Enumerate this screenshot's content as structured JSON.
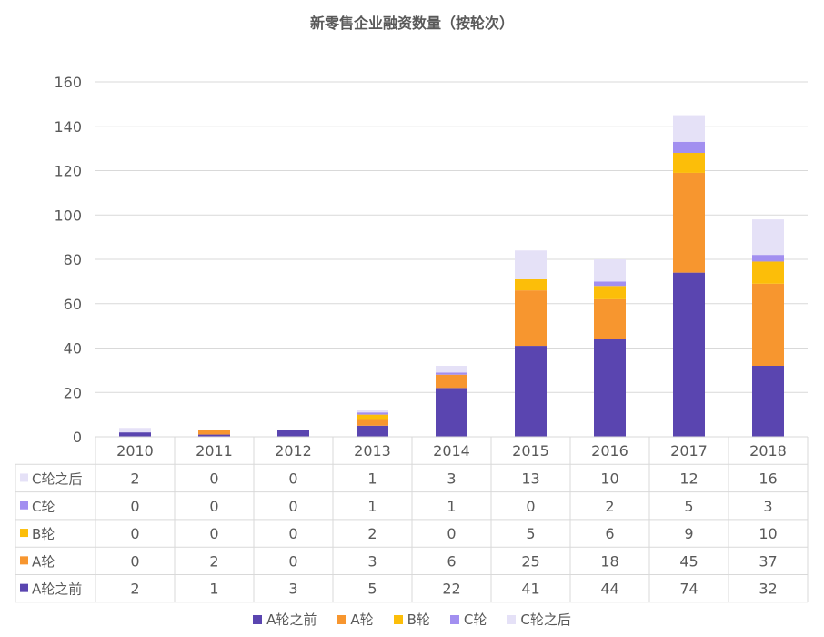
{
  "chart_data": {
    "type": "bar",
    "stacked": true,
    "title": "新零售企业融资数量（按轮次）",
    "categories": [
      "2010",
      "2011",
      "2012",
      "2013",
      "2014",
      "2015",
      "2016",
      "2017",
      "2018"
    ],
    "ylim": [
      0,
      160
    ],
    "yticks": [
      0,
      20,
      40,
      60,
      80,
      100,
      120,
      140,
      160
    ],
    "grid": true,
    "legend_position": "bottom",
    "series": [
      {
        "name": "A轮之前",
        "color": "#5a45b0",
        "values": [
          2,
          1,
          3,
          5,
          22,
          41,
          44,
          74,
          32
        ]
      },
      {
        "name": "A轮",
        "color": "#f7962f",
        "values": [
          0,
          2,
          0,
          3,
          6,
          25,
          18,
          45,
          37
        ]
      },
      {
        "name": "B轮",
        "color": "#fcbe09",
        "values": [
          0,
          0,
          0,
          2,
          0,
          5,
          6,
          9,
          10
        ]
      },
      {
        "name": "C轮",
        "color": "#a28ff0",
        "values": [
          0,
          0,
          0,
          1,
          1,
          0,
          2,
          5,
          3
        ]
      },
      {
        "name": "C轮之后",
        "color": "#e5e1f7",
        "values": [
          2,
          0,
          0,
          1,
          3,
          13,
          10,
          12,
          16
        ]
      }
    ],
    "table_row_order": [
      "C轮之后",
      "C轮",
      "B轮",
      "A轮",
      "A轮之前"
    ]
  }
}
